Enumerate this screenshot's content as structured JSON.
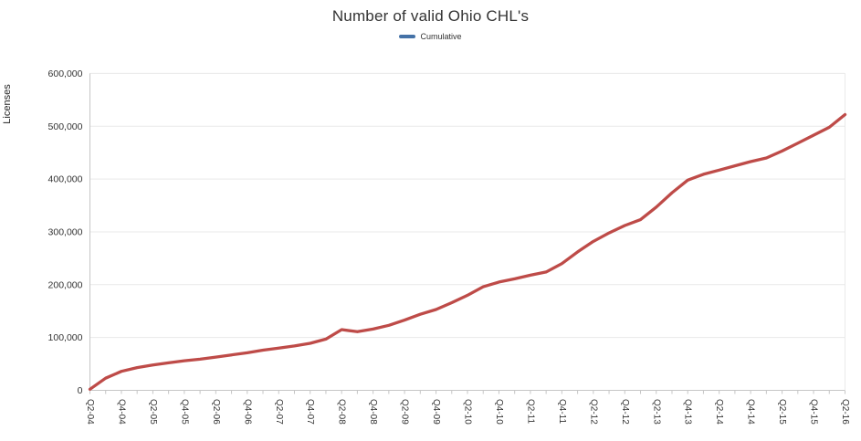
{
  "title": "Number of valid Ohio CHL's",
  "legend": {
    "position": "top",
    "items": [
      {
        "label": "Cumulative",
        "swatch_color": "#4572a7"
      }
    ]
  },
  "y_axis": {
    "title": "Licenses",
    "tick_labels": [
      "0",
      "100,000",
      "200,000",
      "300,000",
      "400,000",
      "500,000",
      "600,000"
    ]
  },
  "colors": {
    "line": "#be4b48",
    "legend_swatch": "#4572a7",
    "gridline": "#e9e9e9",
    "axis": "#c6c6c6",
    "text": "#333333"
  },
  "chart_data": {
    "type": "line",
    "title": "Number of valid Ohio CHL's",
    "xlabel": "",
    "ylabel": "Licenses",
    "ylim": [
      0,
      600000
    ],
    "y_tick_step": 100000,
    "grid": "horizontal",
    "legend_position": "top-center",
    "x_label_rotation": 90,
    "x_label_every": 2,
    "categories": [
      "Q2-04",
      "Q3-04",
      "Q4-04",
      "Q1-05",
      "Q2-05",
      "Q3-05",
      "Q4-05",
      "Q1-06",
      "Q2-06",
      "Q3-06",
      "Q4-06",
      "Q1-07",
      "Q2-07",
      "Q3-07",
      "Q4-07",
      "Q1-08",
      "Q2-08",
      "Q3-08",
      "Q4-08",
      "Q1-09",
      "Q2-09",
      "Q3-09",
      "Q4-09",
      "Q1-10",
      "Q2-10",
      "Q3-10",
      "Q4-10",
      "Q1-11",
      "Q2-11",
      "Q3-11",
      "Q4-11",
      "Q1-12",
      "Q2-12",
      "Q3-12",
      "Q4-12",
      "Q1-13",
      "Q2-13",
      "Q3-13",
      "Q4-13",
      "Q1-14",
      "Q2-14",
      "Q3-14",
      "Q4-14",
      "Q1-15",
      "Q2-15",
      "Q3-15",
      "Q4-15",
      "Q1-16",
      "Q2-16"
    ],
    "series": [
      {
        "name": "Cumulative",
        "color": "#be4b48",
        "values": [
          2000,
          23000,
          36000,
          43000,
          48000,
          52000,
          56000,
          59000,
          63000,
          67000,
          71000,
          76000,
          80000,
          84000,
          89000,
          97000,
          115000,
          111000,
          116000,
          123000,
          133000,
          144000,
          153000,
          166000,
          180000,
          196000,
          205000,
          211000,
          218000,
          224000,
          240000,
          262000,
          282000,
          298000,
          312000,
          323000,
          347000,
          374000,
          398000,
          409000,
          417000,
          425000,
          433000,
          440000,
          453000,
          468000,
          483000,
          498000,
          522000
        ]
      }
    ]
  }
}
